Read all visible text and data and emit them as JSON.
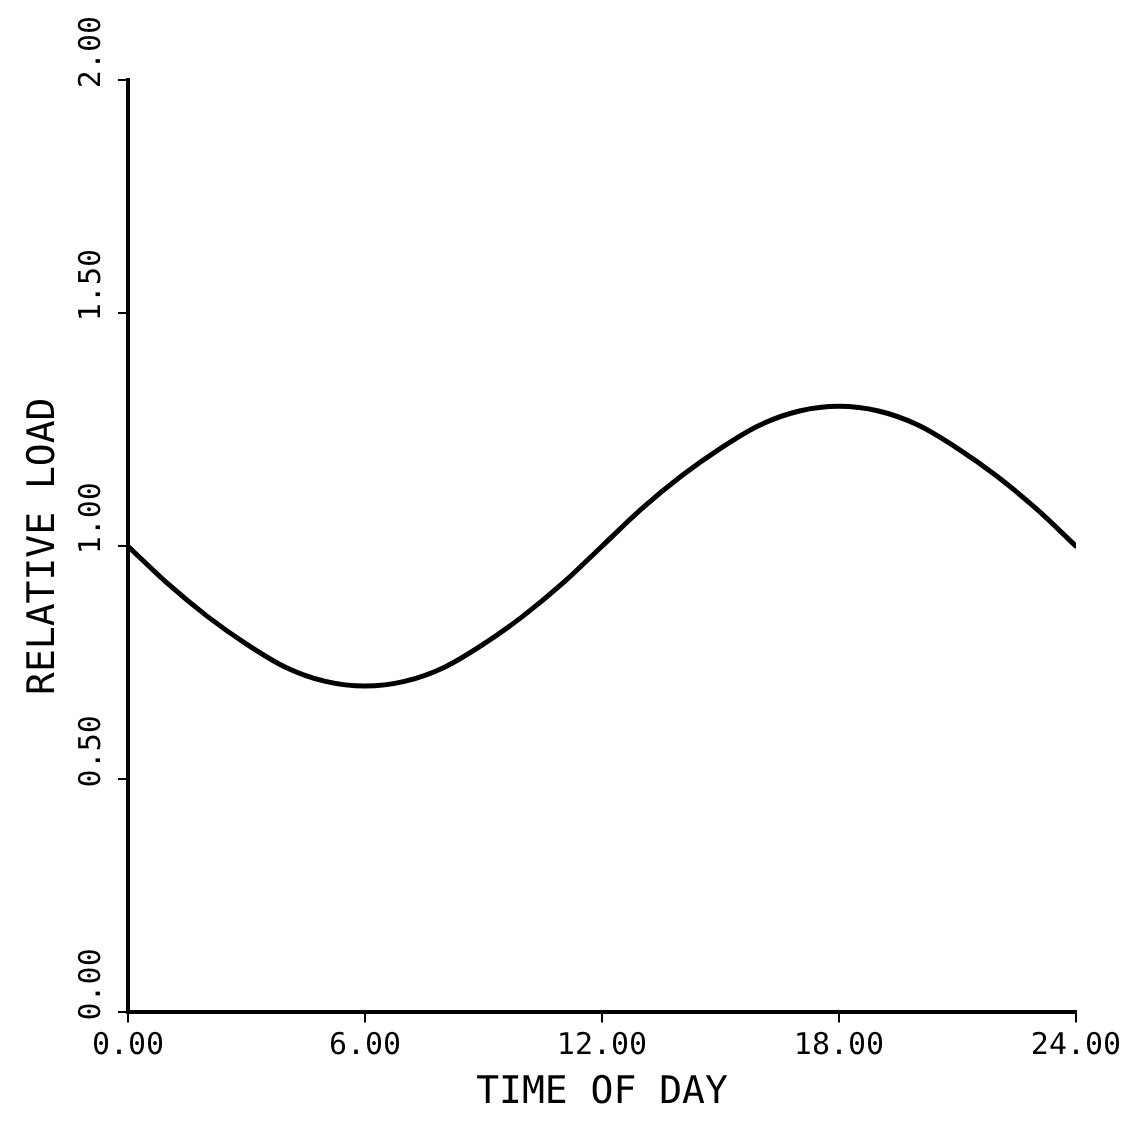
{
  "chart_data": {
    "type": "line",
    "xlabel": "TIME OF DAY",
    "ylabel": "RELATIVE LOAD",
    "x": [
      0,
      1,
      2,
      3,
      4,
      5,
      6,
      7,
      8,
      9,
      10,
      11,
      12,
      13,
      14,
      15,
      16,
      17,
      18,
      19,
      20,
      21,
      22,
      23,
      24
    ],
    "series": [
      {
        "color": "#000000",
        "values": [
          1.0,
          0.92,
          0.85,
          0.79,
          0.74,
          0.71,
          0.7,
          0.71,
          0.74,
          0.79,
          0.85,
          0.92,
          1.0,
          1.08,
          1.15,
          1.21,
          1.26,
          1.29,
          1.3,
          1.29,
          1.26,
          1.21,
          1.15,
          1.08,
          1.0
        ]
      }
    ],
    "xlim": [
      0,
      24
    ],
    "ylim": [
      0,
      2
    ],
    "xticks": [
      {
        "value": 0,
        "label": "0.00"
      },
      {
        "value": 6,
        "label": "6.00"
      },
      {
        "value": 12,
        "label": "12.00"
      },
      {
        "value": 18,
        "label": "18.00"
      },
      {
        "value": 24,
        "label": "24.00"
      }
    ],
    "yticks": [
      {
        "value": 0,
        "label": "0.00"
      },
      {
        "value": 0.5,
        "label": "0.50"
      },
      {
        "value": 1,
        "label": "1.00"
      },
      {
        "value": 1.5,
        "label": "1.50"
      },
      {
        "value": 2,
        "label": "2.00"
      }
    ],
    "grid": false,
    "legend": false,
    "marker": "none",
    "line_style": "solid"
  }
}
